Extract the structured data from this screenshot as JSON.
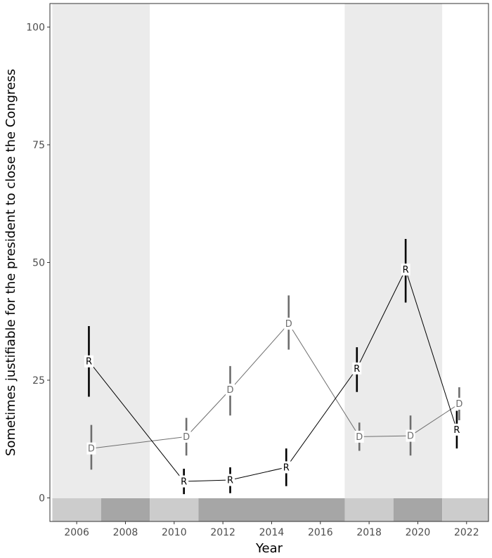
{
  "chart_data": {
    "type": "line",
    "title": "",
    "xlabel": "Year",
    "ylabel": "Sometimes justifiable for the president to close the Congress",
    "xlim": [
      2004.9,
      2022.9
    ],
    "ylim": [
      -5,
      105
    ],
    "x_ticks": [
      2006,
      2008,
      2010,
      2012,
      2014,
      2016,
      2018,
      2020,
      2022
    ],
    "y_ticks": [
      0,
      25,
      50,
      75,
      100
    ],
    "grid": false,
    "colors": {
      "R": "#000000",
      "D": "#6e6e6e",
      "shade_light": "#ebebeb",
      "bar_light": "#cccccc",
      "bar_dark": "#a6a6a6",
      "panel_border": "#333333",
      "tick_text": "#4d4d4d"
    },
    "shaded_periods": [
      {
        "start": 2005.0,
        "end": 2009.0
      },
      {
        "start": 2017.0,
        "end": 2021.0
      }
    ],
    "bottom_bar": [
      {
        "start": 2005.0,
        "end": 2007.0,
        "tone": "light"
      },
      {
        "start": 2007.0,
        "end": 2009.0,
        "tone": "dark"
      },
      {
        "start": 2009.0,
        "end": 2011.0,
        "tone": "light"
      },
      {
        "start": 2011.0,
        "end": 2017.0,
        "tone": "dark"
      },
      {
        "start": 2017.0,
        "end": 2019.0,
        "tone": "light"
      },
      {
        "start": 2019.0,
        "end": 2021.0,
        "tone": "dark"
      },
      {
        "start": 2021.0,
        "end": 2022.9,
        "tone": "light"
      }
    ],
    "series": [
      {
        "name": "R",
        "points": [
          {
            "x": 2006.5,
            "y": 29.0,
            "low": 21.5,
            "high": 36.5
          },
          {
            "x": 2010.4,
            "y": 3.5,
            "low": 0.8,
            "high": 6.2
          },
          {
            "x": 2012.3,
            "y": 3.8,
            "low": 1.0,
            "high": 6.5
          },
          {
            "x": 2014.6,
            "y": 6.5,
            "low": 2.5,
            "high": 10.5
          },
          {
            "x": 2017.5,
            "y": 27.5,
            "low": 22.5,
            "high": 32.0
          },
          {
            "x": 2019.5,
            "y": 48.5,
            "low": 41.5,
            "high": 55.0
          },
          {
            "x": 2021.6,
            "y": 14.5,
            "low": 10.5,
            "high": 18.5
          }
        ]
      },
      {
        "name": "D",
        "points": [
          {
            "x": 2006.6,
            "y": 10.5,
            "low": 6.0,
            "high": 15.5
          },
          {
            "x": 2010.5,
            "y": 13.0,
            "low": 9.0,
            "high": 17.0
          },
          {
            "x": 2012.3,
            "y": 23.0,
            "low": 17.5,
            "high": 28.0
          },
          {
            "x": 2014.7,
            "y": 37.0,
            "low": 31.5,
            "high": 43.0
          },
          {
            "x": 2017.6,
            "y": 13.0,
            "low": 10.0,
            "high": 16.0
          },
          {
            "x": 2019.7,
            "y": 13.2,
            "low": 9.0,
            "high": 17.5
          },
          {
            "x": 2021.7,
            "y": 20.0,
            "low": 16.5,
            "high": 23.5
          }
        ]
      }
    ]
  }
}
